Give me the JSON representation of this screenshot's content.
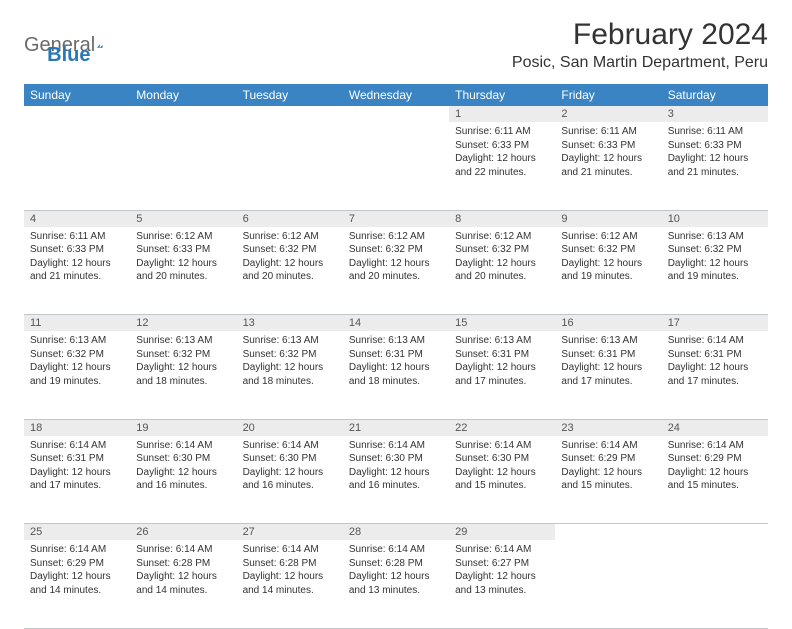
{
  "logo": {
    "text1": "General",
    "text2": "Blue"
  },
  "title": "February 2024",
  "location": "Posic, San Martin Department, Peru",
  "day_headers": [
    "Sunday",
    "Monday",
    "Tuesday",
    "Wednesday",
    "Thursday",
    "Friday",
    "Saturday"
  ],
  "colors": {
    "header_bg": "#3a84c4",
    "header_text": "#ffffff",
    "daynum_bg": "#ececec",
    "border": "#c0c6cc",
    "logo_gray": "#6a6a6a",
    "logo_blue": "#2a77b8"
  },
  "weeks": [
    [
      null,
      null,
      null,
      null,
      {
        "n": "1",
        "sunrise": "6:11 AM",
        "sunset": "6:33 PM",
        "daylight": "12 hours and 22 minutes."
      },
      {
        "n": "2",
        "sunrise": "6:11 AM",
        "sunset": "6:33 PM",
        "daylight": "12 hours and 21 minutes."
      },
      {
        "n": "3",
        "sunrise": "6:11 AM",
        "sunset": "6:33 PM",
        "daylight": "12 hours and 21 minutes."
      }
    ],
    [
      {
        "n": "4",
        "sunrise": "6:11 AM",
        "sunset": "6:33 PM",
        "daylight": "12 hours and 21 minutes."
      },
      {
        "n": "5",
        "sunrise": "6:12 AM",
        "sunset": "6:33 PM",
        "daylight": "12 hours and 20 minutes."
      },
      {
        "n": "6",
        "sunrise": "6:12 AM",
        "sunset": "6:32 PM",
        "daylight": "12 hours and 20 minutes."
      },
      {
        "n": "7",
        "sunrise": "6:12 AM",
        "sunset": "6:32 PM",
        "daylight": "12 hours and 20 minutes."
      },
      {
        "n": "8",
        "sunrise": "6:12 AM",
        "sunset": "6:32 PM",
        "daylight": "12 hours and 20 minutes."
      },
      {
        "n": "9",
        "sunrise": "6:12 AM",
        "sunset": "6:32 PM",
        "daylight": "12 hours and 19 minutes."
      },
      {
        "n": "10",
        "sunrise": "6:13 AM",
        "sunset": "6:32 PM",
        "daylight": "12 hours and 19 minutes."
      }
    ],
    [
      {
        "n": "11",
        "sunrise": "6:13 AM",
        "sunset": "6:32 PM",
        "daylight": "12 hours and 19 minutes."
      },
      {
        "n": "12",
        "sunrise": "6:13 AM",
        "sunset": "6:32 PM",
        "daylight": "12 hours and 18 minutes."
      },
      {
        "n": "13",
        "sunrise": "6:13 AM",
        "sunset": "6:32 PM",
        "daylight": "12 hours and 18 minutes."
      },
      {
        "n": "14",
        "sunrise": "6:13 AM",
        "sunset": "6:31 PM",
        "daylight": "12 hours and 18 minutes."
      },
      {
        "n": "15",
        "sunrise": "6:13 AM",
        "sunset": "6:31 PM",
        "daylight": "12 hours and 17 minutes."
      },
      {
        "n": "16",
        "sunrise": "6:13 AM",
        "sunset": "6:31 PM",
        "daylight": "12 hours and 17 minutes."
      },
      {
        "n": "17",
        "sunrise": "6:14 AM",
        "sunset": "6:31 PM",
        "daylight": "12 hours and 17 minutes."
      }
    ],
    [
      {
        "n": "18",
        "sunrise": "6:14 AM",
        "sunset": "6:31 PM",
        "daylight": "12 hours and 17 minutes."
      },
      {
        "n": "19",
        "sunrise": "6:14 AM",
        "sunset": "6:30 PM",
        "daylight": "12 hours and 16 minutes."
      },
      {
        "n": "20",
        "sunrise": "6:14 AM",
        "sunset": "6:30 PM",
        "daylight": "12 hours and 16 minutes."
      },
      {
        "n": "21",
        "sunrise": "6:14 AM",
        "sunset": "6:30 PM",
        "daylight": "12 hours and 16 minutes."
      },
      {
        "n": "22",
        "sunrise": "6:14 AM",
        "sunset": "6:30 PM",
        "daylight": "12 hours and 15 minutes."
      },
      {
        "n": "23",
        "sunrise": "6:14 AM",
        "sunset": "6:29 PM",
        "daylight": "12 hours and 15 minutes."
      },
      {
        "n": "24",
        "sunrise": "6:14 AM",
        "sunset": "6:29 PM",
        "daylight": "12 hours and 15 minutes."
      }
    ],
    [
      {
        "n": "25",
        "sunrise": "6:14 AM",
        "sunset": "6:29 PM",
        "daylight": "12 hours and 14 minutes."
      },
      {
        "n": "26",
        "sunrise": "6:14 AM",
        "sunset": "6:28 PM",
        "daylight": "12 hours and 14 minutes."
      },
      {
        "n": "27",
        "sunrise": "6:14 AM",
        "sunset": "6:28 PM",
        "daylight": "12 hours and 14 minutes."
      },
      {
        "n": "28",
        "sunrise": "6:14 AM",
        "sunset": "6:28 PM",
        "daylight": "12 hours and 13 minutes."
      },
      {
        "n": "29",
        "sunrise": "6:14 AM",
        "sunset": "6:27 PM",
        "daylight": "12 hours and 13 minutes."
      },
      null,
      null
    ]
  ],
  "labels": {
    "sunrise": "Sunrise:",
    "sunset": "Sunset:",
    "daylight": "Daylight:"
  }
}
